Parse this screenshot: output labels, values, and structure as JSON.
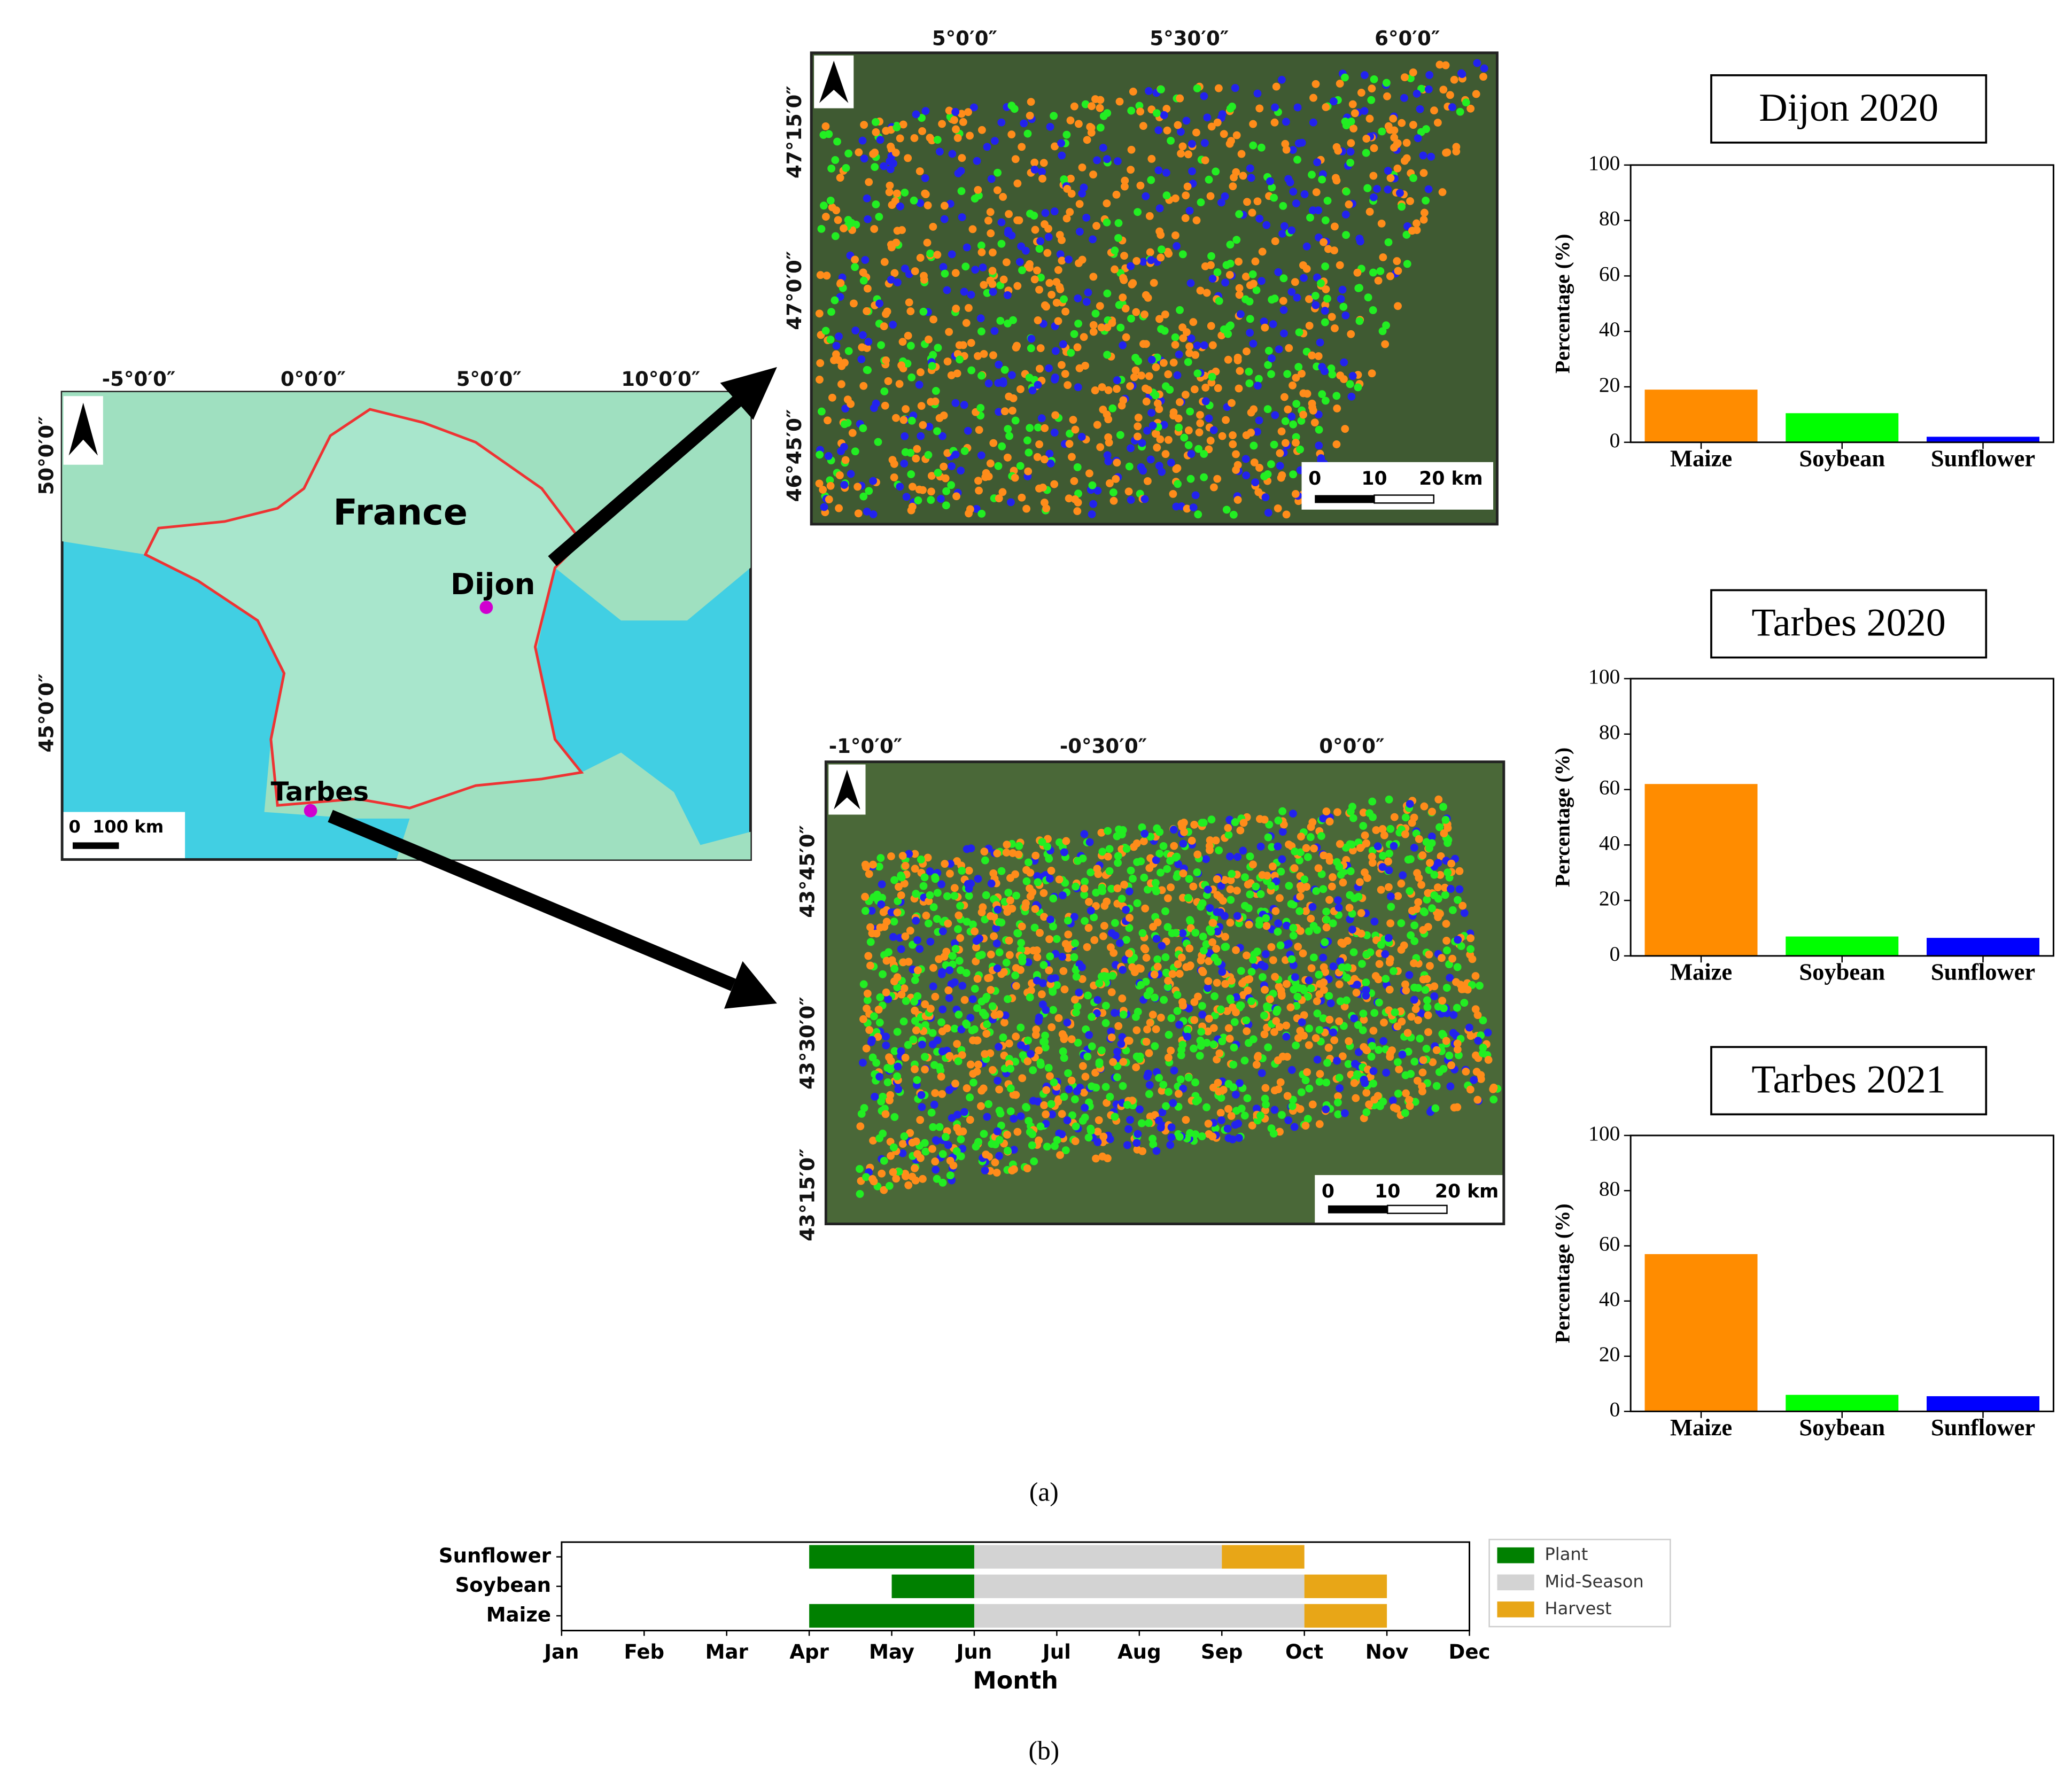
{
  "maps": [
    {
      "x_labels": [
        "-5°0′0″",
        "0°0′0″",
        "5°0′0″",
        "10°0′0″"
      ],
      "y_labels": [
        "50°0′0″",
        "45°0′0″"
      ],
      "labels": [
        "France",
        "Dijon",
        "Tarbes"
      ],
      "scale_labels": [
        "0",
        "100 km"
      ]
    },
    {
      "x_labels": [
        "5°0′0″",
        "5°30′0″",
        "6°0′0″"
      ],
      "y_labels": [
        "47°15′0″",
        "47°0′0″",
        "46°45′0″"
      ],
      "scale_labels": [
        "0",
        "10",
        "20 km"
      ]
    },
    {
      "x_labels": [
        "-1°0′0″",
        "-0°30′0″",
        "0°0′0″"
      ],
      "y_labels": [
        "43°45′0″",
        "43°30′0″",
        "43°15′0″"
      ],
      "scale_labels": [
        "0",
        "10",
        "20 km"
      ]
    }
  ],
  "chart_data": [
    {
      "type": "bar",
      "title": "Dijon 2020",
      "categories": [
        "Maize",
        "Soybean",
        "Sunflower"
      ],
      "values": [
        19,
        10.5,
        2
      ],
      "colors": [
        "#ff8c00",
        "#00ff00",
        "#0000ff"
      ],
      "y_label": "Percentage (%)",
      "ylim": [
        0,
        100
      ],
      "yticks": [
        0,
        20,
        40,
        60,
        80,
        100
      ]
    },
    {
      "type": "bar",
      "title": "Tarbes 2020",
      "categories": [
        "Maize",
        "Soybean",
        "Sunflower"
      ],
      "values": [
        62,
        7,
        6.5
      ],
      "colors": [
        "#ff8c00",
        "#00ff00",
        "#0000ff"
      ],
      "y_label": "Percentage (%)",
      "ylim": [
        0,
        100
      ],
      "yticks": [
        0,
        20,
        40,
        60,
        80,
        100
      ]
    },
    {
      "type": "bar",
      "title": "Tarbes 2021",
      "categories": [
        "Maize",
        "Soybean",
        "Sunflower"
      ],
      "values": [
        57,
        6,
        5.5
      ],
      "colors": [
        "#ff8c00",
        "#00ff00",
        "#0000ff"
      ],
      "y_label": "Percentage (%)",
      "ylim": [
        0,
        100
      ],
      "yticks": [
        0,
        20,
        40,
        60,
        80,
        100
      ]
    },
    {
      "type": "gantt",
      "categories": [
        "Sunflower",
        "Soybean",
        "Maize"
      ],
      "x_label": "Month",
      "xlim": [
        0,
        11
      ],
      "xticks": [
        {
          "value": 0,
          "label": "Jan"
        },
        {
          "value": 1,
          "label": "Feb"
        },
        {
          "value": 2,
          "label": "Mar"
        },
        {
          "value": 3,
          "label": "Apr"
        },
        {
          "value": 4,
          "label": "May"
        },
        {
          "value": 5,
          "label": "Jun"
        },
        {
          "value": 6,
          "label": "Jul"
        },
        {
          "value": 7,
          "label": "Aug"
        },
        {
          "value": 8,
          "label": "Sep"
        },
        {
          "value": 9,
          "label": "Oct"
        },
        {
          "value": 10,
          "label": "Nov"
        },
        {
          "value": 11,
          "label": "Dec"
        }
      ],
      "series": [
        {
          "name": "Plant",
          "color": "#008000",
          "start": [
            3,
            4,
            3
          ],
          "end": [
            5,
            5,
            5
          ]
        },
        {
          "name": "Mid-Season",
          "color": "#d3d3d3",
          "start": [
            5,
            5,
            5
          ],
          "end": [
            8,
            9,
            9
          ]
        },
        {
          "name": "Harvest",
          "color": "#e8a617",
          "start": [
            8,
            9,
            9
          ],
          "end": [
            9,
            10,
            10
          ]
        }
      ],
      "legend": "right"
    }
  ],
  "captions": [
    "(a)",
    "(b)"
  ]
}
